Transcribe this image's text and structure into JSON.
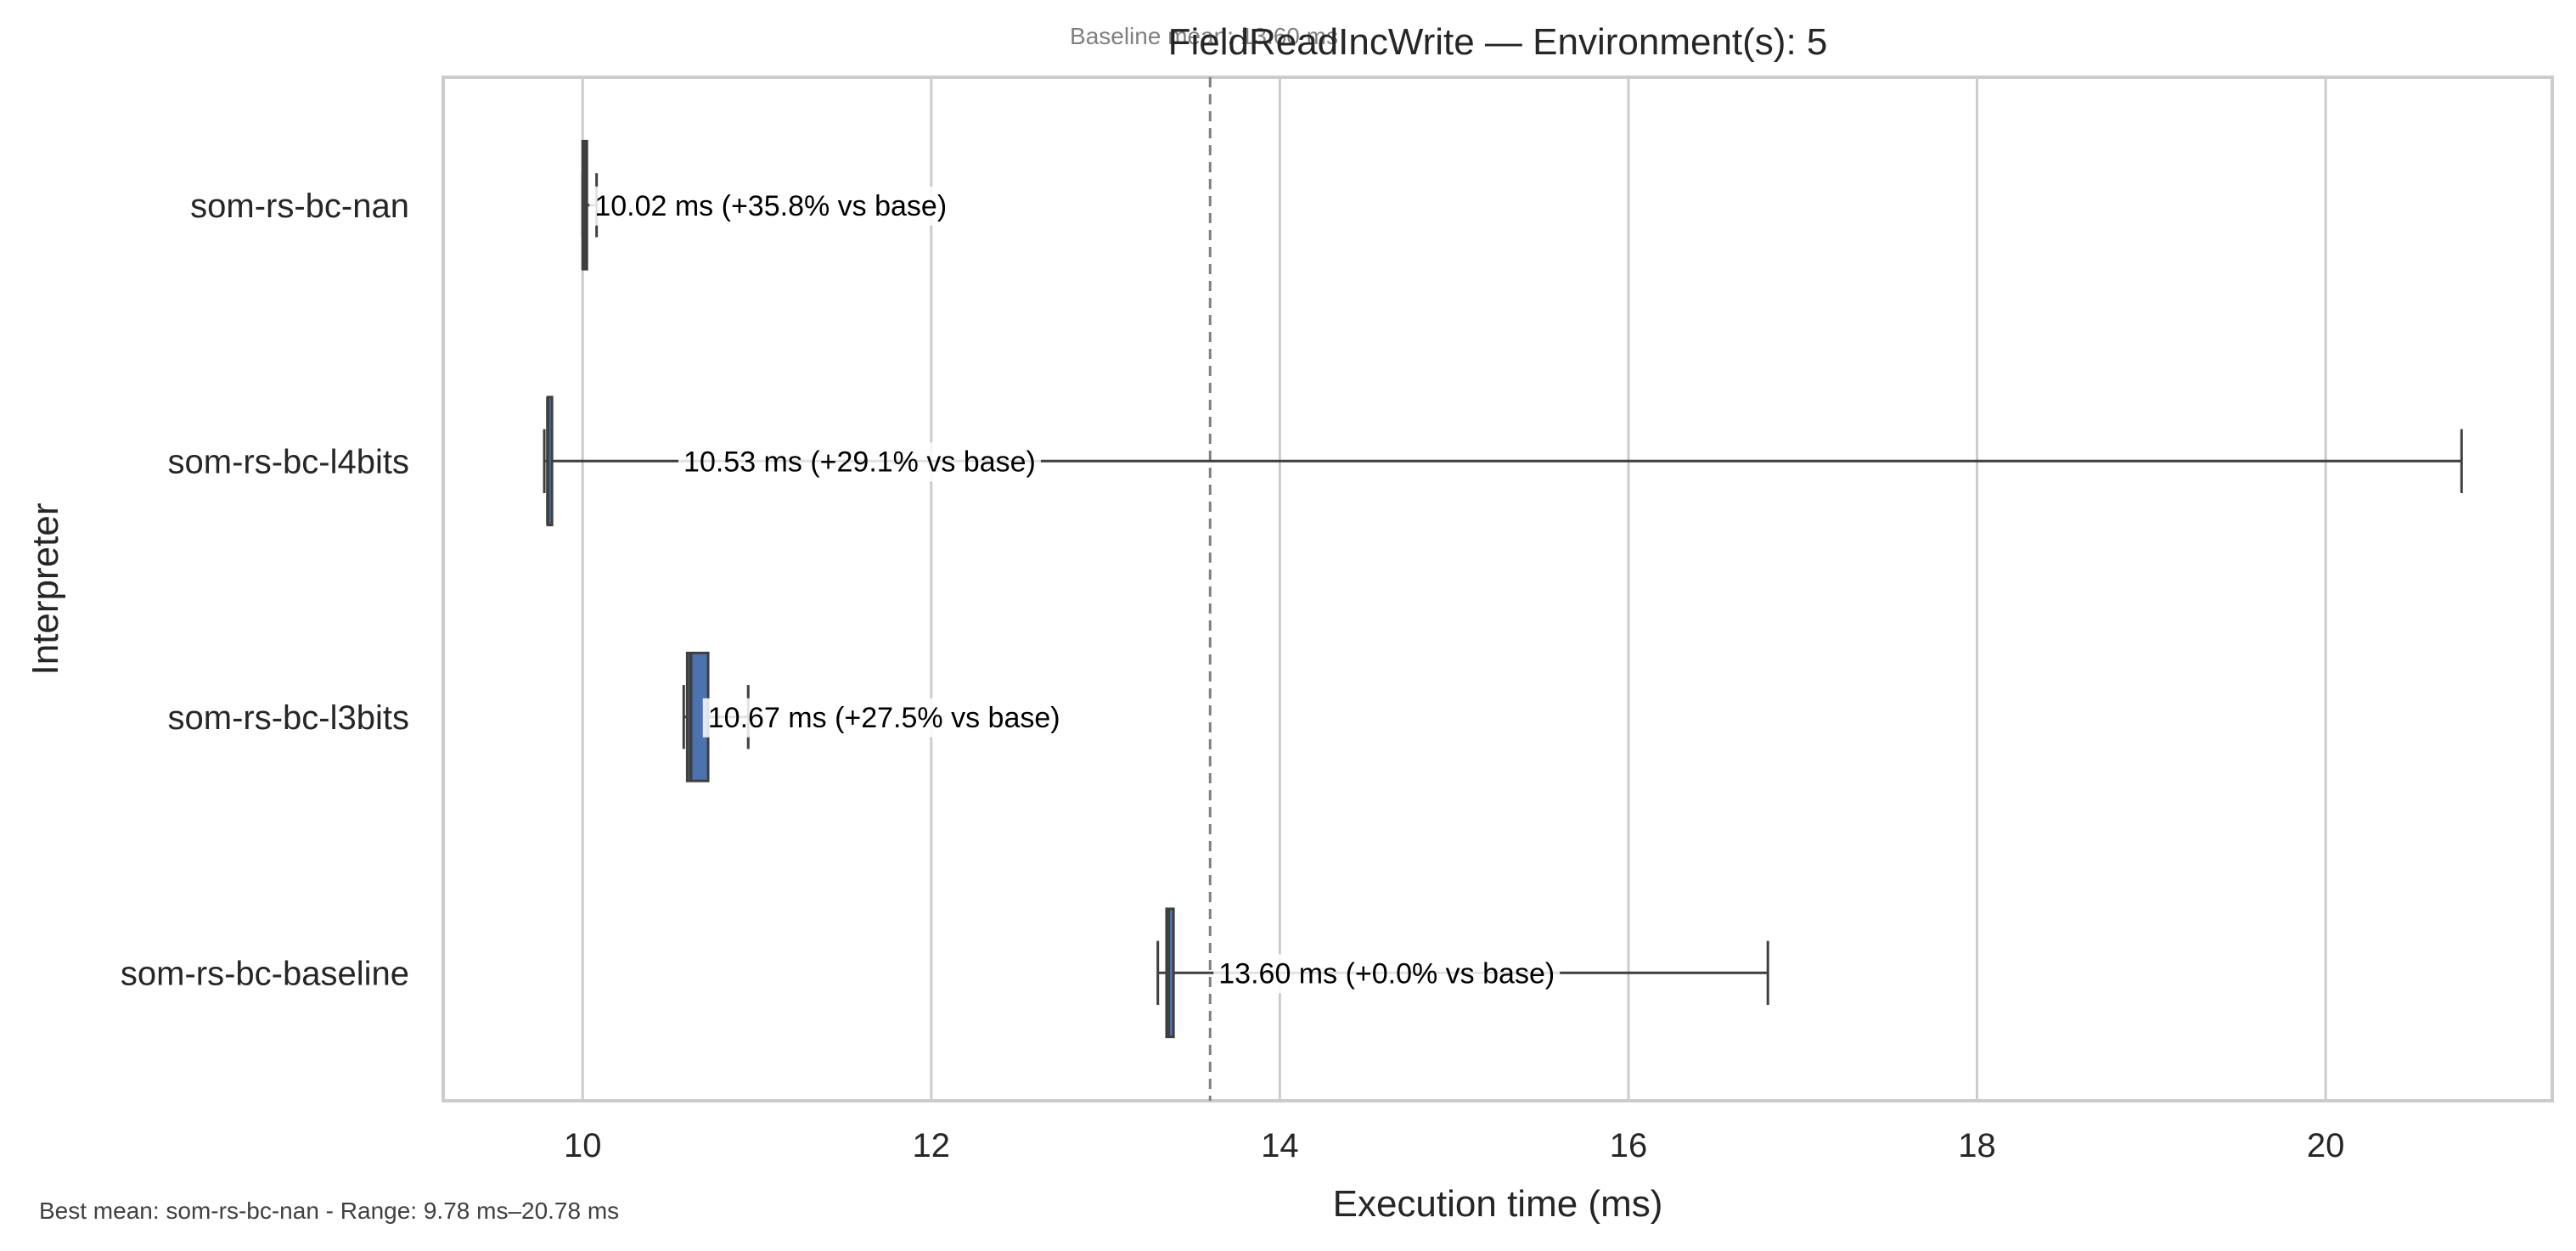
{
  "chart_data": {
    "type": "box",
    "title": "FieldReadIncWrite — Environment(s): 5",
    "baseline_note": "Baseline mean: 13.60 ms",
    "xlabel": "Execution time (ms)",
    "ylabel": "Interpreter",
    "xlim": [
      9.2,
      21.3
    ],
    "xticks": [
      10,
      12,
      14,
      16,
      18,
      20
    ],
    "grid": "vertical",
    "baseline_value": 13.6,
    "box_color": "#4c72b0",
    "line_color": "#3f3f3f",
    "categories": [
      "som-rs-bc-nan",
      "som-rs-bc-l4bits",
      "som-rs-bc-l3bits",
      "som-rs-bc-baseline"
    ],
    "series": [
      {
        "category": "som-rs-bc-nan",
        "whisker_low": 10.0,
        "q1": 10.0,
        "median": 10.01,
        "q3": 10.02,
        "whisker_high": 10.08,
        "mean": 10.02,
        "annotation": "10.02 ms  (+35.8% vs base)"
      },
      {
        "category": "som-rs-bc-l4bits",
        "whisker_low": 9.78,
        "q1": 9.8,
        "median": 9.8,
        "q3": 9.82,
        "whisker_high": 20.78,
        "mean": 10.53,
        "annotation": "10.53 ms  (+29.1% vs base)"
      },
      {
        "category": "som-rs-bc-l3bits",
        "whisker_low": 10.58,
        "q1": 10.6,
        "median": 10.62,
        "q3": 10.72,
        "whisker_high": 10.95,
        "mean": 10.67,
        "annotation": "10.67 ms  (+27.5% vs base)"
      },
      {
        "category": "som-rs-bc-baseline",
        "whisker_low": 13.3,
        "q1": 13.35,
        "median": 13.36,
        "q3": 13.39,
        "whisker_high": 16.8,
        "mean": 13.6,
        "annotation": "13.60 ms  (+0.0% vs base)"
      }
    ],
    "footer": "Best mean: som-rs-bc-nan - Range: 9.78 ms–20.78 ms"
  }
}
